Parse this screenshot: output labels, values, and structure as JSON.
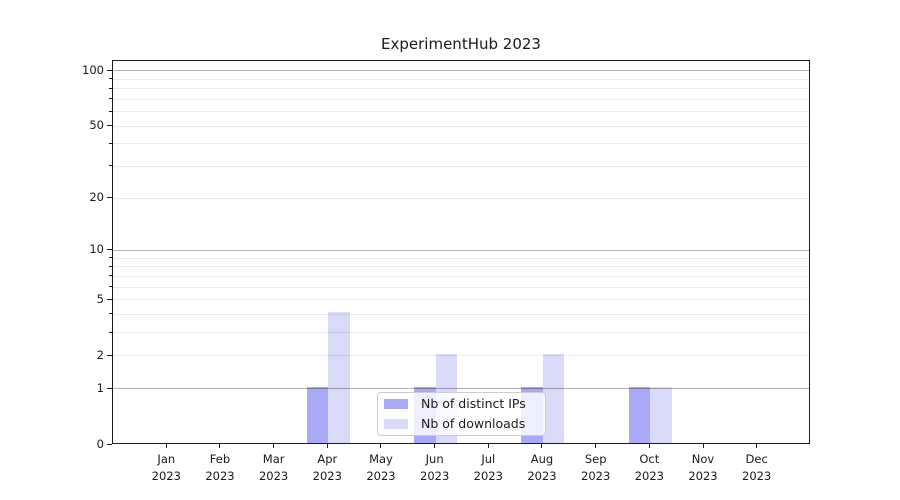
{
  "chart_data": {
    "type": "bar",
    "title": "ExperimentHub 2023",
    "categories": [
      "Jan",
      "Feb",
      "Mar",
      "Apr",
      "May",
      "Jun",
      "Jul",
      "Aug",
      "Sep",
      "Oct",
      "Nov",
      "Dec"
    ],
    "category_year": "2023",
    "series": [
      {
        "name": "Nb of distinct IPs",
        "color": "#a9a9f7",
        "values": [
          0,
          0,
          0,
          1,
          0,
          1,
          0,
          1,
          0,
          1,
          0,
          0
        ]
      },
      {
        "name": "Nb of downloads",
        "color": "#d9d9fa",
        "values": [
          0,
          0,
          0,
          4,
          0,
          2,
          0,
          2,
          0,
          1,
          0,
          0
        ]
      }
    ],
    "y_axis": {
      "scale": "log1p",
      "labeled_ticks": [
        0,
        1,
        2,
        5,
        10,
        20,
        50,
        100
      ],
      "major_gridlines": [
        1,
        10,
        100
      ],
      "minor_gridlines": [
        2,
        3,
        4,
        5,
        6,
        7,
        8,
        9,
        20,
        30,
        40,
        50,
        60,
        70,
        80,
        90
      ],
      "ylim": [
        0,
        100
      ]
    },
    "legend": {
      "position": "lower center",
      "entries": [
        "Nb of distinct IPs",
        "Nb of downloads"
      ]
    },
    "grid": "on"
  }
}
